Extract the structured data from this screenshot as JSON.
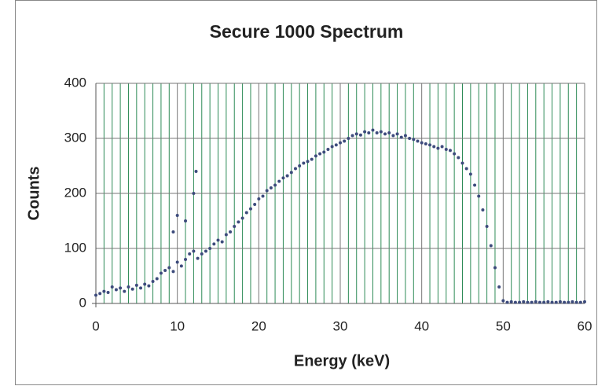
{
  "chart_data": {
    "type": "scatter",
    "title": "Secure 1000 Spectrum",
    "xlabel": "Energy (keV)",
    "ylabel": "Counts",
    "xlim": [
      0,
      60
    ],
    "xticks": [
      0,
      10,
      20,
      30,
      40,
      50,
      60
    ],
    "ylim": [
      0,
      400
    ],
    "yticks": [
      0,
      100,
      200,
      300,
      400
    ],
    "grid": true,
    "minor_grid": true,
    "color": "#3d4b7c",
    "series": [
      {
        "name": null,
        "color": "#3d4b7c",
        "x": [
          0,
          0.5,
          1,
          1.5,
          2,
          2.5,
          3,
          3.5,
          4,
          4.5,
          5,
          5.5,
          6,
          6.5,
          7,
          7.5,
          8,
          8.5,
          9,
          9.5,
          10,
          10.5,
          11,
          11.5,
          12,
          12.5,
          13,
          13.5,
          14,
          14.5,
          15,
          15.5,
          16,
          16.5,
          17,
          17.5,
          18,
          18.5,
          19,
          19.5,
          20,
          20.5,
          21,
          21.5,
          22,
          22.5,
          23,
          23.5,
          24,
          24.5,
          25,
          25.5,
          26,
          26.5,
          27,
          27.5,
          28,
          28.5,
          29,
          29.5,
          30,
          30.5,
          31,
          31.5,
          32,
          32.5,
          33,
          33.5,
          34,
          34.5,
          35,
          35.5,
          36,
          36.5,
          37,
          37.5,
          38,
          38.5,
          39,
          39.5,
          40,
          40.5,
          41,
          41.5,
          42,
          42.5,
          43,
          43.5,
          44,
          44.5,
          45,
          45.5,
          46,
          46.5,
          47,
          47.5,
          48,
          48.5,
          49,
          49.5,
          50,
          50.5,
          51,
          51.5,
          52,
          52.5,
          53,
          53.5,
          54,
          54.5,
          55,
          55.5,
          56,
          56.5,
          57,
          57.5,
          58,
          58.5,
          59,
          59.5,
          60,
          9.5,
          10,
          11,
          12,
          12.3
        ],
        "values": [
          15,
          18,
          22,
          20,
          30,
          25,
          28,
          22,
          30,
          26,
          33,
          28,
          35,
          32,
          40,
          45,
          55,
          60,
          65,
          58,
          75,
          68,
          80,
          90,
          95,
          82,
          90,
          95,
          100,
          108,
          115,
          112,
          125,
          130,
          140,
          148,
          155,
          165,
          172,
          180,
          190,
          195,
          205,
          210,
          215,
          222,
          228,
          232,
          238,
          245,
          250,
          255,
          258,
          262,
          268,
          272,
          275,
          280,
          285,
          288,
          292,
          295,
          300,
          305,
          308,
          306,
          312,
          310,
          315,
          310,
          312,
          308,
          310,
          305,
          308,
          302,
          305,
          300,
          298,
          295,
          292,
          290,
          288,
          285,
          282,
          285,
          280,
          278,
          272,
          265,
          255,
          245,
          235,
          215,
          195,
          170,
          140,
          105,
          65,
          30,
          5,
          2,
          3,
          2,
          2,
          3,
          2,
          2,
          3,
          2,
          2,
          3,
          2,
          2,
          3,
          2,
          2,
          3,
          2,
          2,
          3,
          130,
          160,
          150,
          200,
          240
        ]
      }
    ]
  }
}
